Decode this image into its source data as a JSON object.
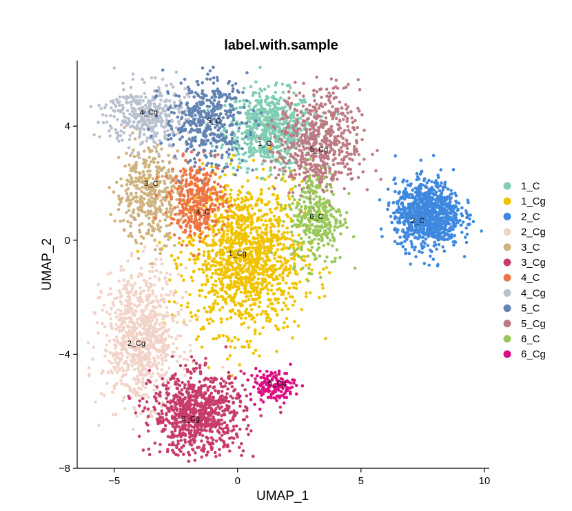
{
  "chart_data": {
    "type": "scatter",
    "title": "label.with.sample",
    "xlabel": "UMAP_1",
    "ylabel": "UMAP_2",
    "xlim": [
      -6.5,
      10.2
    ],
    "ylim": [
      -8,
      6.3
    ],
    "xticks": [
      -5,
      0,
      5,
      10
    ],
    "yticks": [
      -8,
      -4,
      0,
      4
    ],
    "legend_position": "right",
    "grid": false,
    "series": [
      {
        "name": "1_C",
        "color": "#7fcdb4",
        "label": "1_C",
        "label_at": [
          1.1,
          3.3
        ],
        "centroid": [
          1.3,
          3.9
        ],
        "spread": [
          1.6,
          1.2
        ],
        "count": 650
      },
      {
        "name": "1_Cg",
        "color": "#f0c300",
        "label": "1_Cg",
        "label_at": [
          0.0,
          -0.55
        ],
        "centroid": [
          0.3,
          -0.6
        ],
        "spread": [
          2.1,
          2.4
        ],
        "count": 1300
      },
      {
        "name": "2_C",
        "color": "#3f88e0",
        "label": "2_C",
        "label_at": [
          7.3,
          0.6
        ],
        "centroid": [
          7.7,
          0.9
        ],
        "spread": [
          1.2,
          1.05
        ],
        "count": 950
      },
      {
        "name": "2_Cg",
        "color": "#f2d3c8",
        "label": "2_Cg",
        "label_at": [
          -4.1,
          -3.7
        ],
        "centroid": [
          -3.9,
          -3.4
        ],
        "spread": [
          1.4,
          2.1
        ],
        "count": 850
      },
      {
        "name": "3_C",
        "color": "#cfb27f",
        "label": "3_C",
        "label_at": [
          -3.5,
          1.9
        ],
        "centroid": [
          -3.6,
          1.6
        ],
        "spread": [
          1.2,
          1.5
        ],
        "count": 420
      },
      {
        "name": "3_Cg",
        "color": "#c73c6b",
        "label": "3_Cg",
        "label_at": [
          -1.9,
          -6.35
        ],
        "centroid": [
          -1.6,
          -6.1
        ],
        "spread": [
          1.7,
          1.3
        ],
        "count": 850
      },
      {
        "name": "4_C",
        "color": "#ee7444",
        "label": "4_C",
        "label_at": [
          -1.4,
          0.9
        ],
        "centroid": [
          -1.6,
          1.4
        ],
        "spread": [
          1.0,
          1.2
        ],
        "count": 380
      },
      {
        "name": "4_Cg",
        "color": "#b9c0cf",
        "label": "4_Cg",
        "label_at": [
          -3.6,
          4.4
        ],
        "centroid": [
          -3.7,
          4.4
        ],
        "spread": [
          1.5,
          1.0
        ],
        "count": 380
      },
      {
        "name": "5_C",
        "color": "#6384b3",
        "label": "5_C",
        "label_at": [
          -0.95,
          4.1
        ],
        "centroid": [
          -1.3,
          4.2
        ],
        "spread": [
          1.5,
          1.4
        ],
        "count": 420
      },
      {
        "name": "5_Cg",
        "color": "#bd7b84",
        "label": "5_Cg",
        "label_at": [
          3.3,
          3.1
        ],
        "centroid": [
          3.3,
          3.4
        ],
        "spread": [
          1.5,
          1.7
        ],
        "count": 600
      },
      {
        "name": "6_C",
        "color": "#98c85a",
        "label": "6_C",
        "label_at": [
          3.2,
          0.75
        ],
        "centroid": [
          3.2,
          0.8
        ],
        "spread": [
          1.0,
          1.5
        ],
        "count": 320
      },
      {
        "name": "6_Cg",
        "color": "#dc0e82",
        "label": "6_Cg",
        "label_at": [
          1.6,
          -5.1
        ],
        "centroid": [
          1.4,
          -5.1
        ],
        "spread": [
          0.85,
          0.5
        ],
        "count": 150
      }
    ]
  }
}
